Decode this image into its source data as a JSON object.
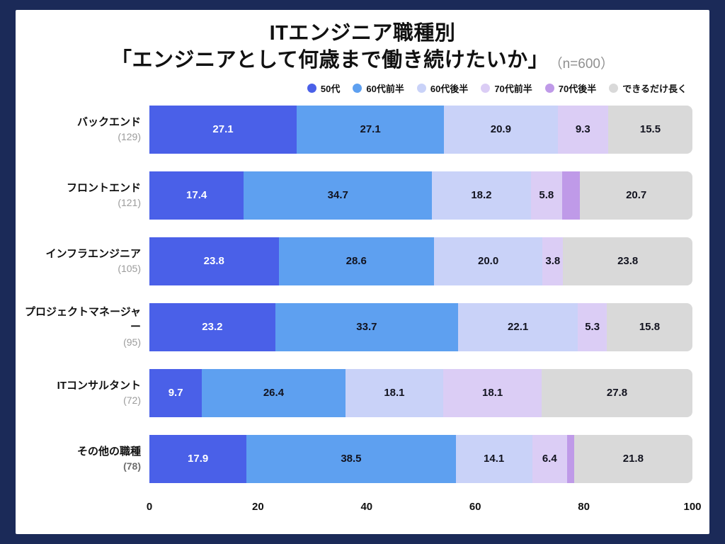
{
  "header": {
    "title_line1": "ITエンジニア職種別",
    "title_line2": "「エンジニアとして何歳まで働き続けたいか」",
    "sample_size": "（n=600）"
  },
  "colors": {
    "background": "#1B2A58",
    "card": "#FFFFFF",
    "value_on_dark": "#FFFFFF",
    "value_on_light": "#12131F"
  },
  "chart_data": {
    "type": "bar",
    "orientation": "horizontal-stacked",
    "title": "ITエンジニア職種別「エンジニアとして何歳まで働き続けたいか」",
    "sample_size_label": "（n=600）",
    "x_axis": {
      "range": [
        0,
        100
      ],
      "ticks": [
        "0",
        "20",
        "40",
        "60",
        "80",
        "100"
      ]
    },
    "legend_position": "top-right",
    "grid": false,
    "legend": [
      {
        "name": "50代",
        "color": "#4A60E8",
        "text_color": "#FFFFFF"
      },
      {
        "name": "60代前半",
        "color": "#5EA0F0",
        "text_color": "#12131F"
      },
      {
        "name": "60代後半",
        "color": "#C9D2F8",
        "text_color": "#12131F"
      },
      {
        "name": "70代前半",
        "color": "#DBCDF5",
        "text_color": "#12131F"
      },
      {
        "name": "70代後半",
        "color": "#BF9AE8",
        "text_color": "#12131F"
      },
      {
        "name": "できるだけ長く",
        "color": "#D9D9D9",
        "text_color": "#12131F"
      }
    ],
    "rows": [
      {
        "category": "バックエンド",
        "count": "(129)",
        "count_strong": false,
        "values": [
          27.1,
          27.1,
          20.9,
          9.3,
          0,
          15.5
        ],
        "labels": [
          "27.1",
          "27.1",
          "20.9",
          "9.3",
          "",
          "15.5"
        ]
      },
      {
        "category": "フロントエンド",
        "count": "(121)",
        "count_strong": false,
        "values": [
          17.4,
          34.7,
          18.2,
          5.8,
          3.3,
          20.7
        ],
        "labels": [
          "17.4",
          "34.7",
          "18.2",
          "5.8",
          "",
          "20.7"
        ]
      },
      {
        "category": "インフラエンジニア",
        "count": "(105)",
        "count_strong": false,
        "values": [
          23.8,
          28.6,
          20.0,
          3.8,
          0,
          23.8
        ],
        "labels": [
          "23.8",
          "28.6",
          "20.0",
          "3.8",
          "",
          "23.8"
        ]
      },
      {
        "category": "プロジェクトマネージャー",
        "count": "(95)",
        "count_strong": false,
        "values": [
          23.2,
          33.7,
          22.1,
          5.3,
          0,
          15.8
        ],
        "labels": [
          "23.2",
          "33.7",
          "22.1",
          "5.3",
          "",
          "15.8"
        ]
      },
      {
        "category": "ITコンサルタント",
        "count": "(72)",
        "count_strong": false,
        "values": [
          9.7,
          26.4,
          18.1,
          18.1,
          0,
          27.8
        ],
        "labels": [
          "9.7",
          "26.4",
          "18.1",
          "18.1",
          "",
          "27.8"
        ]
      },
      {
        "category": "その他の職種",
        "count": "(78)",
        "count_strong": true,
        "values": [
          17.9,
          38.5,
          14.1,
          6.4,
          1.3,
          21.8
        ],
        "labels": [
          "17.9",
          "38.5",
          "14.1",
          "6.4",
          "",
          "21.8"
        ]
      }
    ]
  }
}
